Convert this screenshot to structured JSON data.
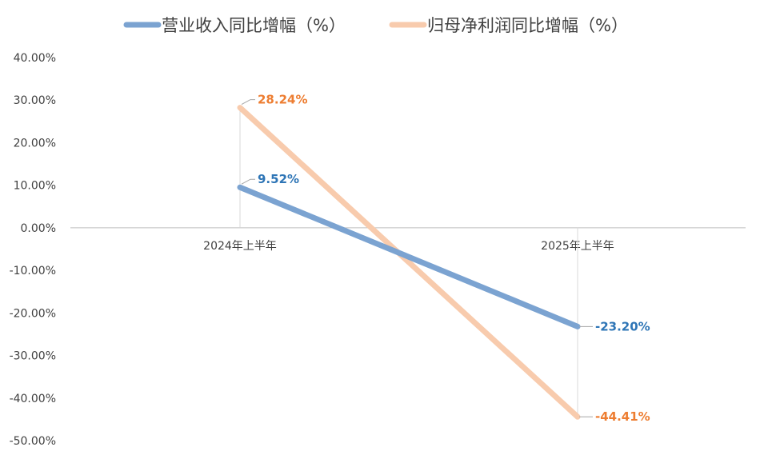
{
  "chart_data": {
    "type": "line",
    "categories": [
      "2024年上半年",
      "2025年上半年"
    ],
    "series": [
      {
        "name": "营业收入同比增幅（%）",
        "values": [
          9.52,
          -23.2
        ],
        "labels": [
          "9.52%",
          "-23.20%"
        ],
        "color": "#7BA3D1",
        "label_color": "#2E75B6"
      },
      {
        "name": "归母净利润同比增幅（%）",
        "values": [
          28.24,
          -44.41
        ],
        "labels": [
          "28.24%",
          "-44.41%"
        ],
        "color": "#F8CBAD",
        "label_color": "#ED7D31"
      }
    ],
    "y_ticks": [
      "40.00%",
      "30.00%",
      "20.00%",
      "10.00%",
      "0.00%",
      "-10.00%",
      "-20.00%",
      "-30.00%",
      "-40.00%",
      "-50.00%"
    ],
    "ylim": [
      -50,
      40
    ],
    "legend_position": "top",
    "grid": false
  }
}
